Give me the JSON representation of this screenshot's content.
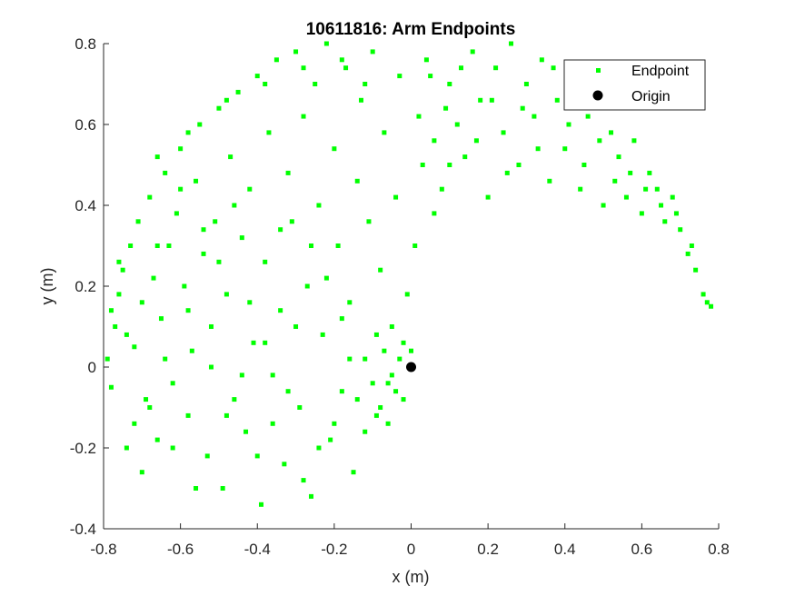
{
  "chart_data": {
    "type": "scatter",
    "title": "10611816: Arm Endpoints",
    "xlabel": "x (m)",
    "ylabel": "y (m)",
    "xlim": [
      -0.8,
      0.8
    ],
    "ylim": [
      -0.4,
      0.8
    ],
    "xticks": [
      -0.8,
      -0.6,
      -0.4,
      -0.2,
      0,
      0.2,
      0.4,
      0.6,
      0.8
    ],
    "yticks": [
      -0.4,
      -0.2,
      0,
      0.2,
      0.4,
      0.6,
      0.8
    ],
    "xtick_labels": [
      "-0.8",
      "-0.6",
      "-0.4",
      "-0.2",
      "0",
      "0.2",
      "0.4",
      "0.6",
      "0.8"
    ],
    "ytick_labels": [
      "-0.4",
      "-0.2",
      "0",
      "0.2",
      "0.4",
      "0.6",
      "0.8"
    ],
    "grid": false,
    "legend_position": "top-right",
    "colors": {
      "endpoint": "#00ff00",
      "origin": "#000000",
      "axis": "#262626"
    },
    "series": [
      {
        "name": "Endpoint",
        "marker": "square",
        "points": [
          [
            -0.79,
            0.02
          ],
          [
            -0.78,
            -0.05
          ],
          [
            -0.77,
            0.1
          ],
          [
            -0.76,
            0.18
          ],
          [
            -0.75,
            0.24
          ],
          [
            -0.74,
            -0.2
          ],
          [
            -0.73,
            0.3
          ],
          [
            -0.72,
            0.05
          ],
          [
            -0.71,
            0.36
          ],
          [
            -0.7,
            -0.26
          ],
          [
            -0.69,
            -0.08
          ],
          [
            -0.68,
            0.42
          ],
          [
            -0.67,
            0.22
          ],
          [
            -0.66,
            -0.18
          ],
          [
            -0.65,
            0.12
          ],
          [
            -0.64,
            0.48
          ],
          [
            -0.63,
            0.3
          ],
          [
            -0.62,
            -0.04
          ],
          [
            -0.61,
            0.38
          ],
          [
            -0.6,
            0.54
          ],
          [
            -0.59,
            0.2
          ],
          [
            -0.58,
            -0.12
          ],
          [
            -0.57,
            0.04
          ],
          [
            -0.56,
            0.46
          ],
          [
            -0.55,
            0.6
          ],
          [
            -0.54,
            0.28
          ],
          [
            -0.53,
            -0.22
          ],
          [
            -0.52,
            0.1
          ],
          [
            -0.51,
            0.36
          ],
          [
            -0.5,
            0.64
          ],
          [
            -0.49,
            -0.3
          ],
          [
            -0.48,
            0.18
          ],
          [
            -0.47,
            0.52
          ],
          [
            -0.46,
            -0.08
          ],
          [
            -0.45,
            0.68
          ],
          [
            -0.44,
            0.32
          ],
          [
            -0.43,
            -0.16
          ],
          [
            -0.42,
            0.44
          ],
          [
            -0.41,
            0.06
          ],
          [
            -0.4,
            0.72
          ],
          [
            -0.39,
            -0.34
          ],
          [
            -0.38,
            0.26
          ],
          [
            -0.37,
            0.58
          ],
          [
            -0.36,
            -0.02
          ],
          [
            -0.35,
            0.76
          ],
          [
            -0.34,
            0.14
          ],
          [
            -0.33,
            -0.24
          ],
          [
            -0.32,
            0.48
          ],
          [
            -0.31,
            0.36
          ],
          [
            -0.3,
            0.78
          ],
          [
            -0.29,
            -0.1
          ],
          [
            -0.28,
            0.62
          ],
          [
            -0.27,
            0.2
          ],
          [
            -0.26,
            -0.32
          ],
          [
            -0.25,
            0.7
          ],
          [
            -0.24,
            0.4
          ],
          [
            -0.23,
            0.08
          ],
          [
            -0.22,
            0.8
          ],
          [
            -0.21,
            -0.18
          ],
          [
            -0.2,
            0.54
          ],
          [
            -0.19,
            0.3
          ],
          [
            -0.18,
            -0.06
          ],
          [
            -0.17,
            0.74
          ],
          [
            -0.16,
            0.16
          ],
          [
            -0.15,
            -0.26
          ],
          [
            -0.14,
            0.46
          ],
          [
            -0.13,
            0.66
          ],
          [
            -0.12,
            0.02
          ],
          [
            -0.11,
            0.36
          ],
          [
            -0.1,
            0.78
          ],
          [
            -0.09,
            -0.12
          ],
          [
            -0.08,
            0.24
          ],
          [
            -0.07,
            0.58
          ],
          [
            -0.06,
            -0.04
          ],
          [
            -0.05,
            0.1
          ],
          [
            -0.04,
            0.42
          ],
          [
            -0.03,
            0.72
          ],
          [
            -0.02,
            -0.08
          ],
          [
            -0.01,
            0.18
          ],
          [
            0.0,
            0.04
          ],
          [
            0.01,
            0.3
          ],
          [
            0.02,
            0.62
          ],
          [
            0.03,
            0.5
          ],
          [
            0.04,
            0.76
          ],
          [
            0.06,
            0.56
          ],
          [
            0.08,
            0.44
          ],
          [
            0.1,
            0.7
          ],
          [
            0.12,
            0.6
          ],
          [
            0.14,
            0.52
          ],
          [
            0.16,
            0.78
          ],
          [
            0.18,
            0.66
          ],
          [
            0.2,
            0.42
          ],
          [
            0.22,
            0.74
          ],
          [
            0.24,
            0.58
          ],
          [
            0.26,
            0.8
          ],
          [
            0.28,
            0.5
          ],
          [
            0.3,
            0.7
          ],
          [
            0.32,
            0.62
          ],
          [
            0.34,
            0.76
          ],
          [
            0.36,
            0.46
          ],
          [
            0.38,
            0.66
          ],
          [
            0.4,
            0.54
          ],
          [
            0.42,
            0.72
          ],
          [
            0.44,
            0.44
          ],
          [
            0.46,
            0.62
          ],
          [
            0.48,
            0.68
          ],
          [
            0.5,
            0.4
          ],
          [
            0.52,
            0.58
          ],
          [
            0.54,
            0.52
          ],
          [
            0.56,
            0.42
          ],
          [
            0.58,
            0.56
          ],
          [
            0.6,
            0.38
          ],
          [
            0.62,
            0.48
          ],
          [
            0.64,
            0.44
          ],
          [
            0.66,
            0.36
          ],
          [
            0.68,
            0.42
          ],
          [
            0.7,
            0.34
          ],
          [
            0.72,
            0.28
          ],
          [
            0.74,
            0.24
          ],
          [
            0.76,
            0.18
          ],
          [
            0.77,
            0.16
          ],
          [
            0.78,
            0.15
          ],
          [
            -0.08,
            -0.1
          ],
          [
            -0.06,
            -0.14
          ],
          [
            -0.04,
            -0.06
          ],
          [
            -0.03,
            0.02
          ],
          [
            -0.02,
            0.06
          ],
          [
            -0.05,
            -0.02
          ],
          [
            -0.07,
            0.04
          ],
          [
            -0.1,
            -0.04
          ],
          [
            -0.12,
            -0.16
          ],
          [
            -0.09,
            0.08
          ],
          [
            -0.14,
            -0.08
          ],
          [
            -0.16,
            0.02
          ],
          [
            -0.18,
            0.12
          ],
          [
            -0.2,
            -0.14
          ],
          [
            -0.22,
            0.22
          ],
          [
            -0.24,
            -0.2
          ],
          [
            -0.26,
            0.3
          ],
          [
            -0.28,
            -0.28
          ],
          [
            -0.3,
            0.1
          ],
          [
            -0.32,
            -0.06
          ],
          [
            -0.34,
            0.34
          ],
          [
            -0.36,
            -0.14
          ],
          [
            -0.38,
            0.06
          ],
          [
            -0.4,
            -0.22
          ],
          [
            -0.42,
            0.16
          ],
          [
            -0.44,
            -0.02
          ],
          [
            -0.46,
            0.4
          ],
          [
            -0.48,
            -0.12
          ],
          [
            -0.5,
            0.26
          ],
          [
            -0.52,
            0.0
          ],
          [
            -0.54,
            0.34
          ],
          [
            -0.56,
            -0.3
          ],
          [
            -0.58,
            0.14
          ],
          [
            -0.6,
            0.44
          ],
          [
            -0.62,
            -0.2
          ],
          [
            -0.64,
            0.02
          ],
          [
            -0.66,
            0.3
          ],
          [
            -0.68,
            -0.1
          ],
          [
            -0.7,
            0.16
          ],
          [
            -0.72,
            -0.14
          ],
          [
            -0.74,
            0.08
          ],
          [
            -0.76,
            0.26
          ],
          [
            -0.78,
            0.14
          ],
          [
            -0.66,
            0.52
          ],
          [
            -0.58,
            0.58
          ],
          [
            -0.48,
            0.66
          ],
          [
            -0.38,
            0.7
          ],
          [
            -0.28,
            0.74
          ],
          [
            -0.18,
            0.76
          ],
          [
            -0.12,
            0.7
          ],
          [
            0.05,
            0.72
          ],
          [
            0.09,
            0.64
          ],
          [
            0.13,
            0.74
          ],
          [
            0.17,
            0.56
          ],
          [
            0.21,
            0.66
          ],
          [
            0.25,
            0.48
          ],
          [
            0.29,
            0.64
          ],
          [
            0.33,
            0.54
          ],
          [
            0.37,
            0.74
          ],
          [
            0.41,
            0.6
          ],
          [
            0.45,
            0.5
          ],
          [
            0.49,
            0.56
          ],
          [
            0.53,
            0.46
          ],
          [
            0.57,
            0.48
          ],
          [
            0.61,
            0.44
          ],
          [
            0.65,
            0.4
          ],
          [
            0.69,
            0.38
          ],
          [
            0.73,
            0.3
          ],
          [
            0.06,
            0.38
          ],
          [
            0.1,
            0.5
          ]
        ]
      },
      {
        "name": "Origin",
        "marker": "circle",
        "points": [
          [
            0,
            0
          ]
        ]
      }
    ]
  }
}
